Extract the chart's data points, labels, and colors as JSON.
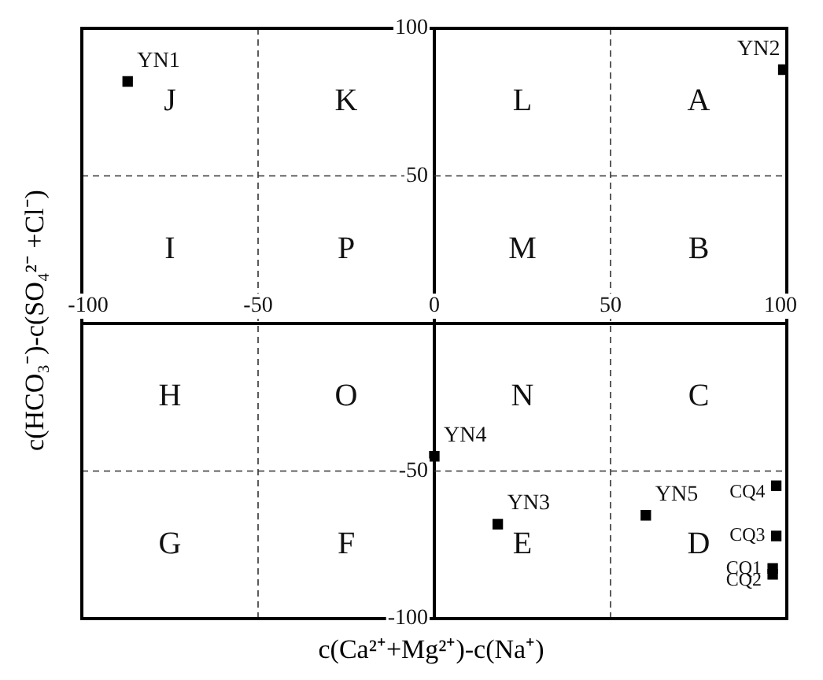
{
  "chart_data": {
    "type": "scatter",
    "xlabel": "c(Ca²⁺+Mg²⁺)-c(Na⁺)",
    "ylabel": "c(HCO₃⁻)-c(SO₄²⁻ +Cl⁻)",
    "xlim": [
      -100,
      100
    ],
    "ylim": [
      -100,
      100
    ],
    "xticks": [
      -100,
      -50,
      0,
      50,
      100
    ],
    "yticks": [
      -100,
      -50,
      50,
      100
    ],
    "grid": true,
    "marker": "square",
    "legend": false,
    "series": [
      {
        "name": "YN1",
        "color": "#000000",
        "x": [
          -87
        ],
        "values": [
          82
        ]
      },
      {
        "name": "YN2",
        "color": "#000000",
        "x": [
          99
        ],
        "values": [
          86
        ]
      },
      {
        "name": "YN3",
        "color": "#000000",
        "x": [
          18
        ],
        "values": [
          -68
        ]
      },
      {
        "name": "YN4",
        "color": "#000000",
        "x": [
          0
        ],
        "values": [
          -45
        ]
      },
      {
        "name": "YN5",
        "color": "#000000",
        "x": [
          60
        ],
        "values": [
          -65
        ]
      },
      {
        "name": "CQ1",
        "color": "#000000",
        "x": [
          96
        ],
        "values": [
          -83
        ]
      },
      {
        "name": "CQ2",
        "color": "#000000",
        "x": [
          96
        ],
        "values": [
          -85
        ]
      },
      {
        "name": "CQ3",
        "color": "#000000",
        "x": [
          97
        ],
        "values": [
          -72
        ]
      },
      {
        "name": "CQ4",
        "color": "#000000",
        "x": [
          97
        ],
        "values": [
          -55
        ]
      }
    ],
    "annotations": [
      "J",
      "K",
      "L",
      "A",
      "I",
      "P",
      "M",
      "B",
      "H",
      "O",
      "N",
      "C",
      "G",
      "F",
      "E",
      "D"
    ]
  }
}
